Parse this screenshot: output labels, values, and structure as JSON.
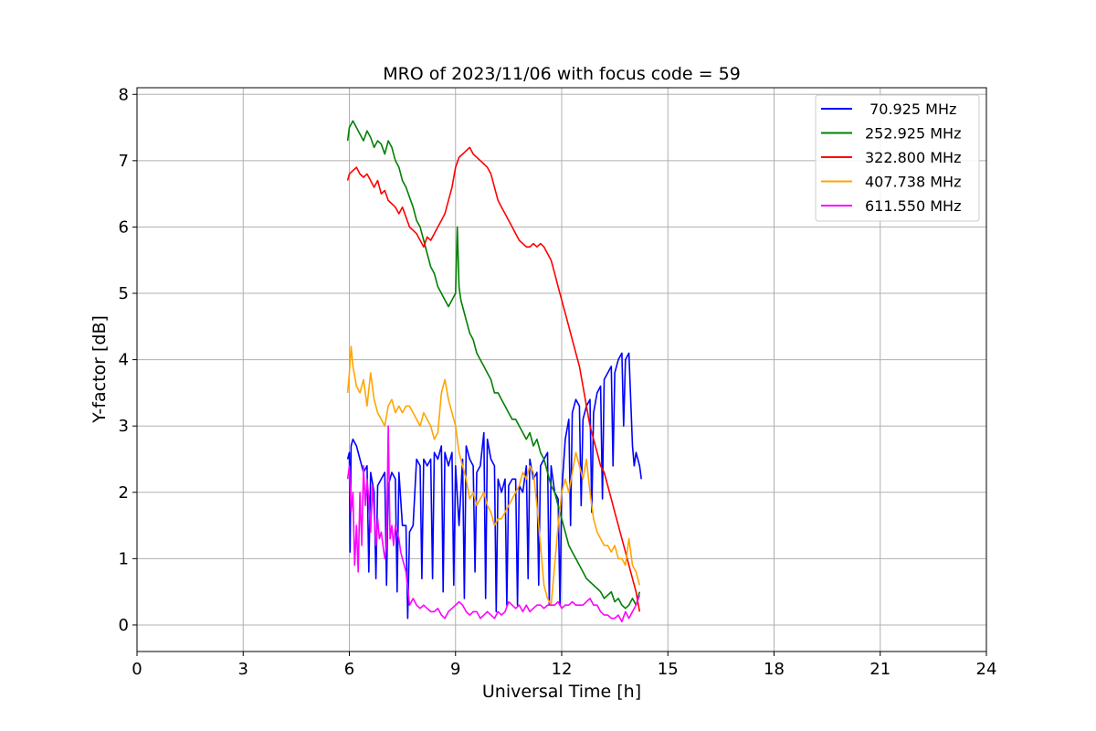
{
  "chart_data": {
    "type": "line",
    "title": "MRO of 2023/11/06 with focus code = 59",
    "xlabel": "Universal Time [h]",
    "ylabel": "Y-factor [dB]",
    "xlim": [
      0,
      24
    ],
    "ylim": [
      -0.4,
      8.1
    ],
    "xticks": [
      0,
      3,
      6,
      9,
      12,
      15,
      18,
      21,
      24
    ],
    "yticks": [
      0,
      1,
      2,
      3,
      4,
      5,
      6,
      7,
      8
    ],
    "grid": true,
    "legend_position": "top-right",
    "series": [
      {
        "name": " 70.925 MHz",
        "color": "#0000ff",
        "x": [
          5.95,
          6.0,
          6.02,
          6.05,
          6.1,
          6.2,
          6.3,
          6.4,
          6.5,
          6.55,
          6.6,
          6.7,
          6.75,
          6.8,
          6.9,
          7.0,
          7.05,
          7.1,
          7.2,
          7.3,
          7.35,
          7.4,
          7.5,
          7.6,
          7.65,
          7.7,
          7.8,
          7.9,
          8.0,
          8.05,
          8.1,
          8.2,
          8.3,
          8.35,
          8.4,
          8.5,
          8.6,
          8.65,
          8.7,
          8.8,
          8.9,
          8.95,
          9.0,
          9.1,
          9.2,
          9.25,
          9.3,
          9.4,
          9.5,
          9.55,
          9.6,
          9.7,
          9.8,
          9.85,
          9.9,
          10.0,
          10.1,
          10.15,
          10.2,
          10.3,
          10.4,
          10.45,
          10.5,
          10.6,
          10.7,
          10.75,
          10.8,
          10.9,
          11.0,
          11.05,
          11.1,
          11.2,
          11.3,
          11.35,
          11.4,
          11.5,
          11.6,
          11.65,
          11.7,
          11.8,
          11.9,
          11.95,
          12.0,
          12.1,
          12.2,
          12.25,
          12.3,
          12.4,
          12.5,
          12.55,
          12.6,
          12.7,
          12.8,
          12.85,
          12.9,
          13.0,
          13.1,
          13.15,
          13.2,
          13.3,
          13.4,
          13.45,
          13.5,
          13.6,
          13.7,
          13.75,
          13.8,
          13.9,
          14.0,
          14.05,
          14.1,
          14.2,
          14.25
        ],
        "y": [
          2.5,
          2.6,
          1.1,
          2.7,
          2.8,
          2.7,
          2.5,
          2.3,
          2.4,
          0.8,
          2.3,
          2.0,
          0.7,
          2.1,
          2.2,
          2.3,
          0.6,
          2.1,
          2.3,
          2.2,
          0.5,
          2.3,
          1.5,
          1.5,
          0.1,
          1.4,
          1.5,
          2.5,
          2.4,
          0.7,
          2.5,
          2.4,
          2.5,
          0.7,
          2.6,
          2.5,
          2.7,
          0.5,
          2.6,
          2.4,
          2.6,
          0.6,
          2.4,
          1.5,
          2.5,
          0.4,
          2.7,
          2.5,
          2.4,
          0.8,
          2.3,
          2.4,
          2.9,
          0.4,
          2.8,
          2.5,
          2.4,
          0.2,
          2.2,
          2.0,
          2.2,
          0.3,
          2.1,
          2.2,
          2.2,
          0.3,
          2.1,
          2.0,
          2.4,
          0.7,
          2.5,
          2.2,
          2.3,
          0.6,
          2.4,
          2.5,
          2.6,
          0.3,
          2.4,
          2.0,
          1.9,
          0.3,
          2.0,
          2.8,
          3.1,
          1.5,
          3.2,
          3.4,
          3.3,
          1.8,
          3.1,
          3.3,
          3.4,
          1.7,
          3.2,
          3.5,
          3.6,
          1.9,
          3.7,
          3.8,
          3.9,
          2.4,
          3.8,
          4.0,
          4.1,
          3.0,
          4.0,
          4.1,
          2.7,
          2.4,
          2.6,
          2.4,
          2.2
        ]
      },
      {
        "name": "252.925 MHz",
        "color": "#008000",
        "x": [
          5.95,
          6.0,
          6.1,
          6.2,
          6.3,
          6.4,
          6.5,
          6.6,
          6.7,
          6.8,
          6.9,
          7.0,
          7.1,
          7.2,
          7.3,
          7.4,
          7.5,
          7.6,
          7.7,
          7.8,
          7.9,
          8.0,
          8.1,
          8.2,
          8.3,
          8.4,
          8.5,
          8.6,
          8.7,
          8.8,
          8.9,
          9.0,
          9.05,
          9.1,
          9.15,
          9.2,
          9.3,
          9.4,
          9.5,
          9.6,
          9.7,
          9.8,
          9.9,
          10.0,
          10.1,
          10.2,
          10.3,
          10.4,
          10.5,
          10.6,
          10.7,
          10.8,
          10.9,
          11.0,
          11.1,
          11.2,
          11.3,
          11.4,
          11.5,
          11.6,
          11.7,
          11.8,
          11.9,
          12.0,
          12.1,
          12.2,
          12.3,
          12.4,
          12.5,
          12.6,
          12.7,
          12.8,
          12.9,
          13.0,
          13.1,
          13.2,
          13.3,
          13.4,
          13.5,
          13.6,
          13.7,
          13.8,
          13.9,
          14.0,
          14.1,
          14.2
        ],
        "y": [
          7.3,
          7.5,
          7.6,
          7.5,
          7.4,
          7.3,
          7.45,
          7.35,
          7.2,
          7.3,
          7.25,
          7.1,
          7.3,
          7.2,
          7.0,
          6.9,
          6.7,
          6.6,
          6.45,
          6.3,
          6.1,
          6.0,
          5.8,
          5.6,
          5.4,
          5.3,
          5.1,
          5.0,
          4.9,
          4.8,
          4.9,
          5.0,
          6.0,
          5.1,
          4.9,
          4.8,
          4.6,
          4.4,
          4.3,
          4.1,
          4.0,
          3.9,
          3.8,
          3.7,
          3.5,
          3.5,
          3.4,
          3.3,
          3.2,
          3.1,
          3.1,
          3.0,
          2.9,
          2.8,
          2.9,
          2.7,
          2.8,
          2.6,
          2.5,
          2.3,
          2.1,
          2.0,
          1.8,
          1.6,
          1.4,
          1.2,
          1.1,
          1.0,
          0.9,
          0.8,
          0.7,
          0.65,
          0.6,
          0.55,
          0.5,
          0.4,
          0.45,
          0.5,
          0.35,
          0.4,
          0.3,
          0.25,
          0.3,
          0.4,
          0.3,
          0.5
        ]
      },
      {
        "name": "322.800 MHz",
        "color": "#ff0000",
        "x": [
          5.95,
          6.0,
          6.1,
          6.2,
          6.3,
          6.4,
          6.5,
          6.6,
          6.7,
          6.8,
          6.9,
          7.0,
          7.1,
          7.2,
          7.3,
          7.4,
          7.5,
          7.6,
          7.7,
          7.8,
          7.9,
          8.0,
          8.1,
          8.2,
          8.3,
          8.4,
          8.5,
          8.6,
          8.7,
          8.8,
          8.9,
          9.0,
          9.1,
          9.2,
          9.3,
          9.4,
          9.5,
          9.6,
          9.7,
          9.8,
          9.9,
          10.0,
          10.1,
          10.2,
          10.3,
          10.4,
          10.5,
          10.6,
          10.7,
          10.8,
          10.9,
          11.0,
          11.1,
          11.2,
          11.3,
          11.4,
          11.5,
          11.6,
          11.7,
          11.8,
          11.9,
          12.0,
          12.1,
          12.2,
          12.3,
          12.4,
          12.5,
          12.6,
          12.7,
          12.8,
          12.9,
          13.0,
          13.1,
          13.2,
          13.3,
          13.4,
          13.5,
          13.6,
          13.7,
          13.8,
          13.9,
          14.0,
          14.1,
          14.2
        ],
        "y": [
          6.7,
          6.8,
          6.85,
          6.9,
          6.8,
          6.75,
          6.8,
          6.7,
          6.6,
          6.7,
          6.5,
          6.55,
          6.4,
          6.35,
          6.3,
          6.2,
          6.3,
          6.15,
          6.0,
          5.95,
          5.9,
          5.8,
          5.7,
          5.85,
          5.8,
          5.9,
          6.0,
          6.1,
          6.2,
          6.4,
          6.6,
          6.9,
          7.05,
          7.1,
          7.15,
          7.2,
          7.1,
          7.05,
          7.0,
          6.95,
          6.9,
          6.8,
          6.6,
          6.4,
          6.3,
          6.2,
          6.1,
          6.0,
          5.9,
          5.8,
          5.75,
          5.7,
          5.7,
          5.75,
          5.7,
          5.75,
          5.7,
          5.6,
          5.5,
          5.3,
          5.1,
          4.9,
          4.7,
          4.5,
          4.3,
          4.1,
          3.9,
          3.6,
          3.3,
          3.0,
          2.8,
          2.6,
          2.4,
          2.3,
          2.1,
          1.9,
          1.7,
          1.5,
          1.3,
          1.1,
          0.9,
          0.7,
          0.5,
          0.2
        ]
      },
      {
        "name": "407.738 MHz",
        "color": "#ffa500",
        "x": [
          5.95,
          6.0,
          6.05,
          6.1,
          6.2,
          6.3,
          6.4,
          6.5,
          6.6,
          6.7,
          6.8,
          6.9,
          7.0,
          7.1,
          7.2,
          7.3,
          7.4,
          7.5,
          7.6,
          7.7,
          7.8,
          7.9,
          8.0,
          8.1,
          8.2,
          8.3,
          8.4,
          8.5,
          8.6,
          8.7,
          8.8,
          8.9,
          9.0,
          9.1,
          9.2,
          9.3,
          9.4,
          9.5,
          9.6,
          9.7,
          9.8,
          9.9,
          10.0,
          10.1,
          10.2,
          10.3,
          10.4,
          10.5,
          10.6,
          10.7,
          10.8,
          10.9,
          11.0,
          11.1,
          11.2,
          11.3,
          11.4,
          11.5,
          11.6,
          11.7,
          11.8,
          11.9,
          12.0,
          12.1,
          12.2,
          12.3,
          12.4,
          12.5,
          12.6,
          12.7,
          12.8,
          12.9,
          13.0,
          13.1,
          13.2,
          13.3,
          13.4,
          13.5,
          13.6,
          13.7,
          13.8,
          13.9,
          14.0,
          14.1,
          14.2
        ],
        "y": [
          3.5,
          3.8,
          4.2,
          3.9,
          3.6,
          3.5,
          3.7,
          3.3,
          3.8,
          3.4,
          3.2,
          3.1,
          3.0,
          3.3,
          3.4,
          3.2,
          3.3,
          3.2,
          3.3,
          3.3,
          3.2,
          3.1,
          3.0,
          3.2,
          3.1,
          3.0,
          2.8,
          2.9,
          3.5,
          3.7,
          3.4,
          3.2,
          3.0,
          2.6,
          2.4,
          2.2,
          1.9,
          2.0,
          1.8,
          1.9,
          2.0,
          1.8,
          1.7,
          1.5,
          1.6,
          1.6,
          1.7,
          1.8,
          1.9,
          2.0,
          2.1,
          2.3,
          2.2,
          2.4,
          2.3,
          1.8,
          1.2,
          0.6,
          0.4,
          0.3,
          0.9,
          1.5,
          2.0,
          2.2,
          2.0,
          2.3,
          2.6,
          2.4,
          2.2,
          2.5,
          2.0,
          1.6,
          1.4,
          1.3,
          1.2,
          1.2,
          1.1,
          1.2,
          1.0,
          1.0,
          0.9,
          1.3,
          0.9,
          0.8,
          0.6
        ]
      },
      {
        "name": "611.550 MHz",
        "color": "#ff00ff",
        "x": [
          5.95,
          6.0,
          6.05,
          6.1,
          6.15,
          6.2,
          6.25,
          6.3,
          6.35,
          6.4,
          6.45,
          6.5,
          6.55,
          6.6,
          6.65,
          6.7,
          6.75,
          6.8,
          6.85,
          6.9,
          6.95,
          7.0,
          7.05,
          7.1,
          7.15,
          7.2,
          7.25,
          7.3,
          7.35,
          7.4,
          7.45,
          7.5,
          7.55,
          7.6,
          7.7,
          7.8,
          7.9,
          8.0,
          8.1,
          8.2,
          8.3,
          8.4,
          8.5,
          8.6,
          8.7,
          8.8,
          8.9,
          9.0,
          9.1,
          9.2,
          9.3,
          9.4,
          9.5,
          9.6,
          9.7,
          9.8,
          9.9,
          10.0,
          10.1,
          10.2,
          10.3,
          10.4,
          10.5,
          10.6,
          10.7,
          10.8,
          10.9,
          11.0,
          11.1,
          11.2,
          11.3,
          11.4,
          11.5,
          11.6,
          11.7,
          11.8,
          11.9,
          12.0,
          12.1,
          12.2,
          12.3,
          12.4,
          12.5,
          12.6,
          12.7,
          12.8,
          12.9,
          13.0,
          13.1,
          13.2,
          13.3,
          13.4,
          13.5,
          13.6,
          13.7,
          13.8,
          13.9,
          14.0,
          14.1,
          14.2
        ],
        "y": [
          2.2,
          2.4,
          1.7,
          2.0,
          0.9,
          1.5,
          0.8,
          2.0,
          1.2,
          2.4,
          1.8,
          2.2,
          1.9,
          1.4,
          2.1,
          1.7,
          1.2,
          1.6,
          1.3,
          1.4,
          1.2,
          1.0,
          1.2,
          3.0,
          1.3,
          1.5,
          1.2,
          1.5,
          1.4,
          1.3,
          1.1,
          1.0,
          0.9,
          0.8,
          0.3,
          0.4,
          0.3,
          0.25,
          0.3,
          0.25,
          0.2,
          0.2,
          0.25,
          0.15,
          0.1,
          0.2,
          0.25,
          0.3,
          0.35,
          0.3,
          0.2,
          0.15,
          0.2,
          0.2,
          0.1,
          0.15,
          0.2,
          0.15,
          0.1,
          0.2,
          0.15,
          0.2,
          0.35,
          0.3,
          0.25,
          0.3,
          0.2,
          0.3,
          0.2,
          0.25,
          0.3,
          0.3,
          0.25,
          0.3,
          0.3,
          0.3,
          0.35,
          0.25,
          0.3,
          0.3,
          0.35,
          0.3,
          0.3,
          0.3,
          0.35,
          0.4,
          0.3,
          0.3,
          0.2,
          0.15,
          0.15,
          0.1,
          0.1,
          0.15,
          0.05,
          0.2,
          0.1,
          0.2,
          0.3,
          0.45
        ]
      }
    ]
  }
}
